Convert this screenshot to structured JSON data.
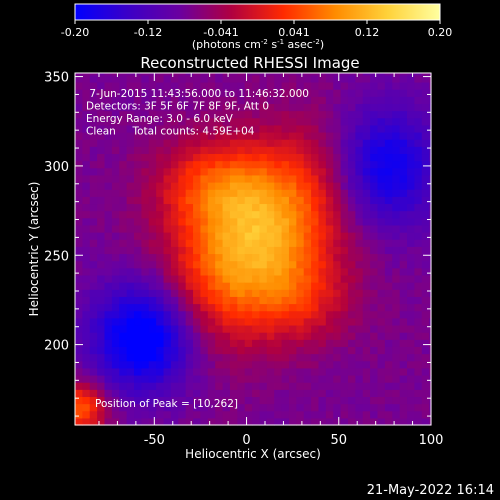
{
  "chart_data": {
    "type": "heatmap",
    "title": "Reconstructed RHESSI Image",
    "xlabel": "Heliocentric X (arcsec)",
    "ylabel": "Heliocentric Y (arcsec)",
    "xlim": [
      -93,
      100
    ],
    "ylim": [
      155,
      352
    ],
    "xticks": [
      -50,
      0,
      50,
      100
    ],
    "yticks": [
      200,
      250,
      300,
      350
    ],
    "colorbar": {
      "range": [
        -0.2,
        0.2
      ],
      "tick_labels": [
        "-0.20",
        "-0.12",
        "-0.041",
        "0.041",
        "0.12",
        "0.20"
      ],
      "unit_label": "(photons cm",
      "unit_sup1": "-2",
      "unit_mid": " s",
      "unit_sup2": "-1",
      "unit_mid2": " asec",
      "unit_sup3": "-2",
      "unit_end": ")",
      "colors": [
        "#0000ff",
        "#3a00c8",
        "#6a00a0",
        "#b00040",
        "#ff2a00",
        "#ff8c00",
        "#ffd23a",
        "#ffffa0"
      ]
    },
    "info_lines": [
      " 7-Jun-2015 11:43:56.000 to 11:46:32.000",
      "Detectors: 3F 5F 6F 7F 8F 9F, Att 0",
      "Energy Range: 3.0 - 6.0 keV",
      "Clean     Total counts: 4.59E+04"
    ],
    "peak_label": "Position of Peak = [10,262]",
    "peak": [
      10,
      262
    ],
    "sources": [
      {
        "x": 5,
        "y": 258,
        "sx": 26,
        "sy": 42,
        "rot": -38,
        "amp": 0.19
      },
      {
        "x": -20,
        "y": 290,
        "sx": 22,
        "sy": 18,
        "rot": 0,
        "amp": 0.09
      },
      {
        "x": 30,
        "y": 225,
        "sx": 20,
        "sy": 18,
        "rot": 0,
        "amp": 0.06
      },
      {
        "x": -55,
        "y": 205,
        "sx": 20,
        "sy": 22,
        "rot": 0,
        "amp": -0.17
      },
      {
        "x": 75,
        "y": 300,
        "sx": 20,
        "sy": 24,
        "rot": 0,
        "amp": -0.13
      },
      {
        "x": -90,
        "y": 165,
        "sx": 10,
        "sy": 10,
        "rot": 0,
        "amp": 0.13
      }
    ],
    "background": -0.075
  },
  "footer": {
    "date": "21-May-2022 16:14"
  }
}
